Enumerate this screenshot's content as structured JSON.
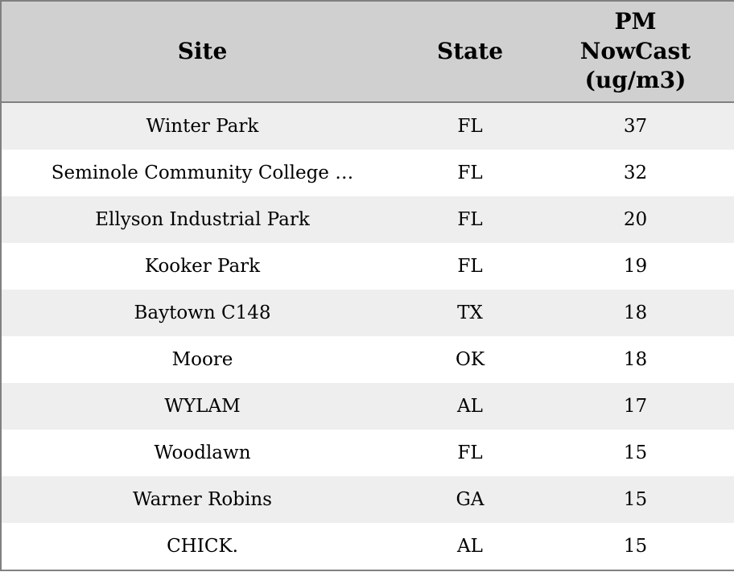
{
  "colors": {
    "header_bg": "#d0d0d0",
    "stripe_bg": "#eeeeee",
    "row_bg": "#ffffff",
    "border": "#808080",
    "text": "#000000"
  },
  "chart_data": {
    "type": "table",
    "title": "",
    "columns": [
      "Site",
      "State",
      "PM NowCast (ug/m3)"
    ],
    "rows": [
      [
        "Winter Park",
        "FL",
        37
      ],
      [
        "Seminole Community College …",
        "FL",
        32
      ],
      [
        "Ellyson Industrial Park",
        "FL",
        20
      ],
      [
        "Kooker Park",
        "FL",
        19
      ],
      [
        "Baytown C148",
        "TX",
        18
      ],
      [
        "Moore",
        "OK",
        18
      ],
      [
        "WYLAM",
        "AL",
        17
      ],
      [
        "Woodlawn",
        "FL",
        15
      ],
      [
        "Warner Robins",
        "GA",
        15
      ],
      [
        "CHICK.",
        "AL",
        15
      ]
    ]
  },
  "table": {
    "headers": {
      "site": "Site",
      "state": "State",
      "pm": "PM\nNowCast\n(ug/m3)"
    },
    "rows": [
      {
        "site": "Winter Park",
        "state": "FL",
        "pm": "37"
      },
      {
        "site": "Seminole Community College …",
        "state": "FL",
        "pm": "32"
      },
      {
        "site": "Ellyson Industrial Park",
        "state": "FL",
        "pm": "20"
      },
      {
        "site": "Kooker Park",
        "state": "FL",
        "pm": "19"
      },
      {
        "site": "Baytown C148",
        "state": "TX",
        "pm": "18"
      },
      {
        "site": "Moore",
        "state": "OK",
        "pm": "18"
      },
      {
        "site": "WYLAM",
        "state": "AL",
        "pm": "17"
      },
      {
        "site": "Woodlawn",
        "state": "FL",
        "pm": "15"
      },
      {
        "site": "Warner Robins",
        "state": "GA",
        "pm": "15"
      },
      {
        "site": "CHICK.",
        "state": "AL",
        "pm": "15"
      }
    ]
  }
}
